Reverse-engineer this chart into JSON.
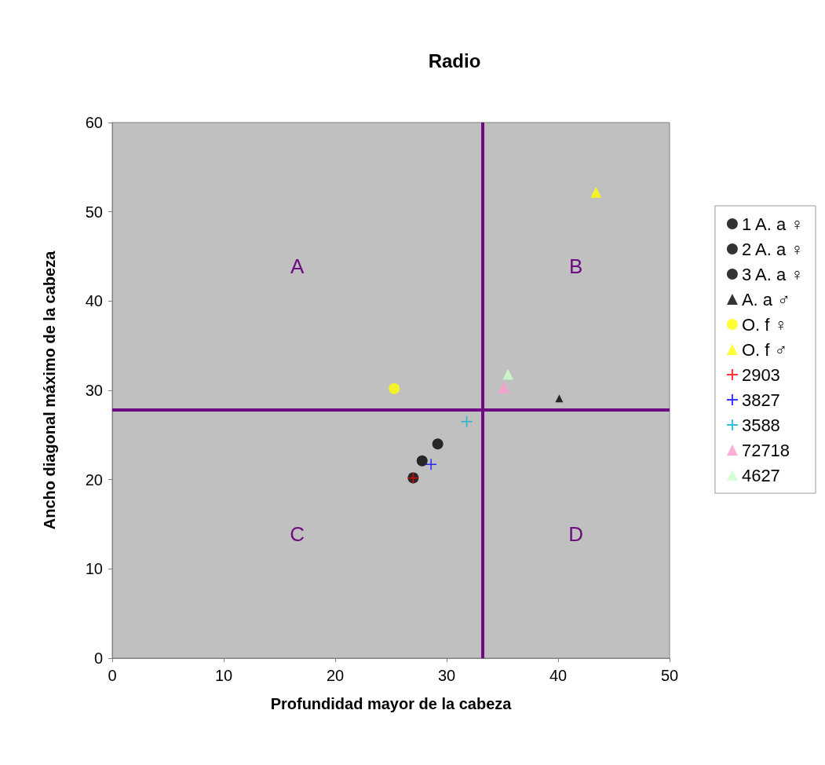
{
  "chart_data": {
    "type": "scatter",
    "title": "Radio",
    "xlabel": "Profundidad mayor de la cabeza",
    "ylabel": "Ancho diagonal máximo de la cabeza",
    "xlim": [
      0,
      50
    ],
    "xticks": [
      0,
      10,
      20,
      30,
      40,
      50
    ],
    "ylim": [
      0,
      60
    ],
    "yticks": [
      0,
      10,
      20,
      30,
      40,
      50,
      60
    ],
    "grid": false,
    "legend": "right",
    "series": [
      {
        "name": "1 A. a ♀",
        "color": "#000000",
        "marker": "circle",
        "x": [
          27.0
        ],
        "values": [
          20.2
        ]
      },
      {
        "name": "2 A. a ♀",
        "color": "#000000",
        "marker": "circle",
        "x": [
          27.8
        ],
        "values": [
          22.1
        ]
      },
      {
        "name": "3 A. a ♀",
        "color": "#000000",
        "marker": "circle",
        "x": [
          29.2
        ],
        "values": [
          24.0
        ]
      },
      {
        "name": "A. a ♂",
        "color": "#000000",
        "marker": "triangle",
        "x": [
          40.1
        ],
        "values": [
          29.1
        ]
      },
      {
        "name": "O. f ♀",
        "color": "#ffff00",
        "marker": "circle",
        "x": [
          25.3
        ],
        "values": [
          30.2
        ]
      },
      {
        "name": "O. f ♂",
        "color": "#ffff00",
        "marker": "triangle",
        "x": [
          43.4
        ],
        "values": [
          52.2
        ]
      },
      {
        "name": "2903",
        "color": "#ff0000",
        "marker": "cross",
        "x": [
          27.0
        ],
        "values": [
          20.2
        ]
      },
      {
        "name": "3827",
        "color": "#0000ff",
        "marker": "cross",
        "x": [
          28.6
        ],
        "values": [
          21.7
        ]
      },
      {
        "name": "3588",
        "color": "#00b0d8",
        "marker": "cross",
        "x": [
          31.8
        ],
        "values": [
          26.5
        ]
      },
      {
        "name": "72718",
        "color": "#ff99cc",
        "marker": "triangle",
        "x": [
          35.1
        ],
        "values": [
          30.3
        ]
      },
      {
        "name": "4627",
        "color": "#ccffcc",
        "marker": "triangle",
        "x": [
          35.5
        ],
        "values": [
          31.8
        ]
      }
    ],
    "ref_lines": [
      {
        "axis": "x",
        "value": 33.2,
        "color": "#6e0a82"
      },
      {
        "axis": "y",
        "value": 27.8,
        "color": "#6e0a82"
      }
    ],
    "annotations": [
      "A",
      "B",
      "C",
      "D"
    ]
  }
}
